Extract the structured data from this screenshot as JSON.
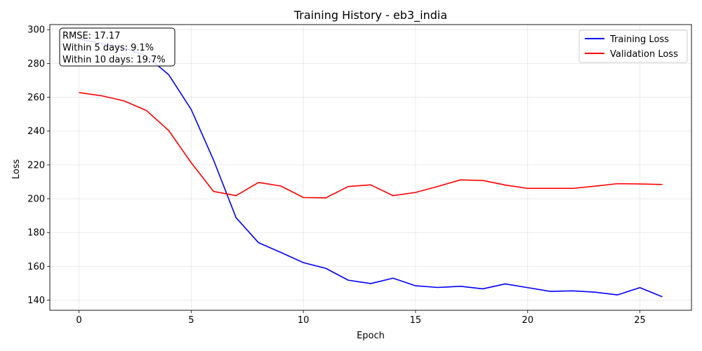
{
  "chart_data": {
    "type": "line",
    "title": "Training History - eb3_india",
    "xlabel": "Epoch",
    "ylabel": "Loss",
    "xlim": [
      -1.3,
      27.3
    ],
    "ylim": [
      134,
      303
    ],
    "xticks": [
      0,
      5,
      10,
      15,
      20,
      25
    ],
    "yticks": [
      140,
      160,
      180,
      200,
      220,
      240,
      260,
      280,
      300
    ],
    "grid": true,
    "legend_position": "top-right",
    "x": [
      0,
      1,
      2,
      3,
      4,
      5,
      6,
      7,
      8,
      9,
      10,
      11,
      12,
      13,
      14,
      15,
      16,
      17,
      18,
      19,
      20,
      21,
      22,
      23,
      24,
      25,
      26
    ],
    "series": [
      {
        "name": "Training Loss",
        "color": "#0000ff",
        "values": [
          294.5,
          291.8,
          289.2,
          284.5,
          273.3,
          252.8,
          222.8,
          188.8,
          174.0,
          168.2,
          162.2,
          158.8,
          151.8,
          149.8,
          153.0,
          148.5,
          147.5,
          148.2,
          146.7,
          149.6,
          147.4,
          145.2,
          145.5,
          144.7,
          143.1,
          147.4,
          142.0
        ]
      },
      {
        "name": "Validation Loss",
        "color": "#ff0000",
        "values": [
          262.8,
          260.9,
          257.9,
          252.2,
          240.3,
          221.3,
          204.3,
          201.8,
          209.6,
          207.5,
          200.7,
          200.5,
          207.2,
          208.2,
          201.8,
          203.7,
          207.3,
          211.1,
          210.8,
          208.1,
          206.1,
          206.1,
          206.1,
          207.4,
          208.9,
          208.7,
          208.4
        ]
      }
    ],
    "annotation": [
      "RMSE: 17.17",
      "Within 5 days: 9.1%",
      "Within 10 days: 19.7%"
    ]
  }
}
